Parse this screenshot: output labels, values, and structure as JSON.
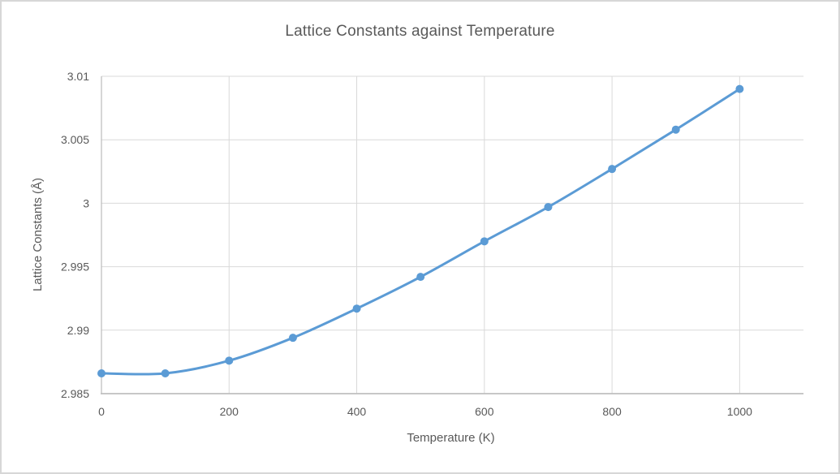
{
  "window": {
    "background_color": "#FFFFFF",
    "border_color": "#D7D7D7"
  },
  "chart_data": {
    "type": "line",
    "title": "Lattice Constants against Temperature",
    "xlabel": "Temperature (K)",
    "ylabel": "Lattice Constants (Å)",
    "x": [
      0,
      100,
      200,
      300,
      400,
      500,
      600,
      700,
      800,
      900,
      1000
    ],
    "y": [
      2.9866,
      2.9866,
      2.9876,
      2.9894,
      2.9917,
      2.9942,
      2.997,
      2.9997,
      3.0027,
      3.0058,
      3.009
    ],
    "xlim": [
      0,
      1100
    ],
    "ylim": [
      2.985,
      3.01
    ],
    "x_ticks": [
      0,
      200,
      400,
      600,
      800,
      1000
    ],
    "x_tick_labels": [
      "0",
      "200",
      "400",
      "600",
      "800",
      "1000"
    ],
    "y_ticks": [
      2.985,
      2.99,
      2.995,
      3.0,
      3.005,
      3.01
    ],
    "y_tick_labels": [
      "2.985",
      "2.99",
      "2.995",
      "3",
      "3.005",
      "3.01"
    ],
    "grid": true,
    "legend": false,
    "smooth_line": true,
    "line_color": "#5B9BD5",
    "marker_color": "#5B9BD5",
    "grid_color": "#D9D9D9",
    "axis_color": "#BFBFBF",
    "text_color": "#595959"
  }
}
